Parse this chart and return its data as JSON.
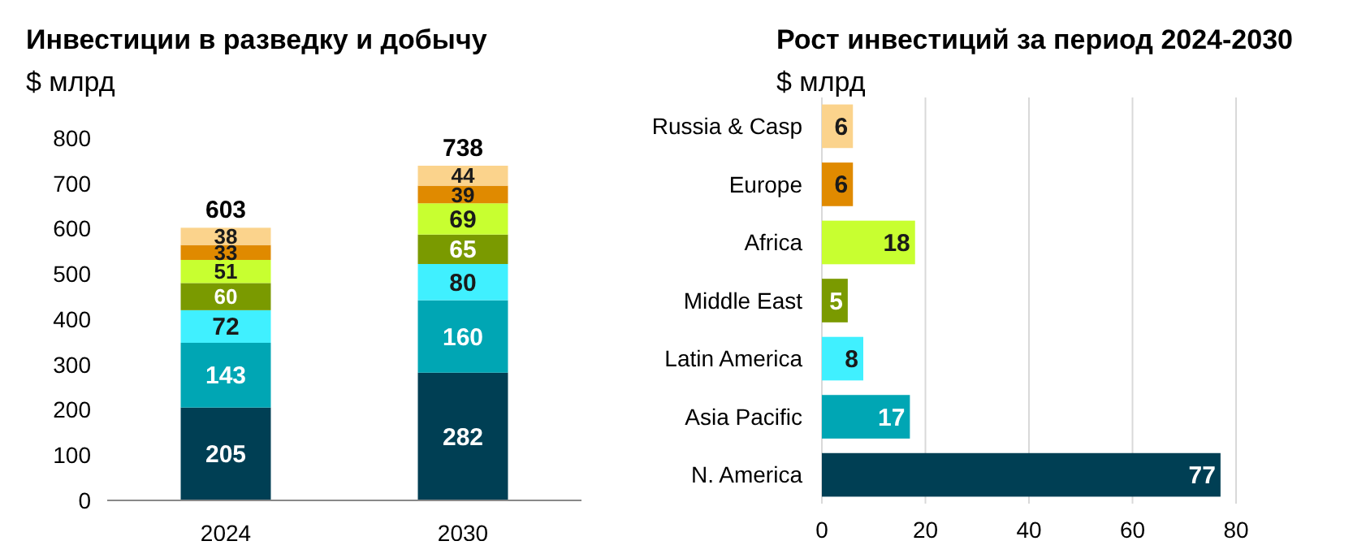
{
  "chart_data": [
    {
      "type": "bar",
      "title": "Инвестиции в разведку и добычу",
      "subtitle": "$ млрд",
      "categories": [
        "2024",
        "2030"
      ],
      "stacked": true,
      "data_labels": true,
      "ylim": [
        0,
        800
      ],
      "yticks": [
        0,
        100,
        200,
        300,
        400,
        500,
        600,
        700,
        800
      ],
      "totals": [
        "603",
        "738"
      ],
      "grid": false,
      "series": [
        {
          "color": "#003f54",
          "values": [
            205,
            282
          ]
        },
        {
          "color": "#00a6b4",
          "values": [
            143,
            160
          ]
        },
        {
          "color": "#40f0ff",
          "values": [
            72,
            80
          ]
        },
        {
          "color": "#7a9a00",
          "values": [
            60,
            65
          ]
        },
        {
          "color": "#c8ff30",
          "values": [
            51,
            69
          ]
        },
        {
          "color": "#e08a00",
          "values": [
            33,
            39
          ]
        },
        {
          "color": "#fbd38c",
          "values": [
            38,
            44
          ]
        }
      ]
    },
    {
      "type": "bar",
      "title": "Рост инвестиций за период 2024-2030",
      "subtitle": "$ млрд",
      "orientation": "horizontal",
      "categories": [
        "Russia & Casp",
        "Europe",
        "Africa",
        "Middle East",
        "Latin America",
        "Asia Pacific",
        "N. America"
      ],
      "values": [
        6,
        6,
        18,
        5,
        8,
        17,
        77
      ],
      "colors": [
        "#fbd38c",
        "#e08a00",
        "#c8ff30",
        "#7a9a00",
        "#40f0ff",
        "#00a6b4",
        "#003f54"
      ],
      "data_labels": true,
      "xlim": [
        0,
        80
      ],
      "xticks": [
        0,
        20,
        40,
        60,
        80
      ],
      "grid": "x"
    }
  ]
}
